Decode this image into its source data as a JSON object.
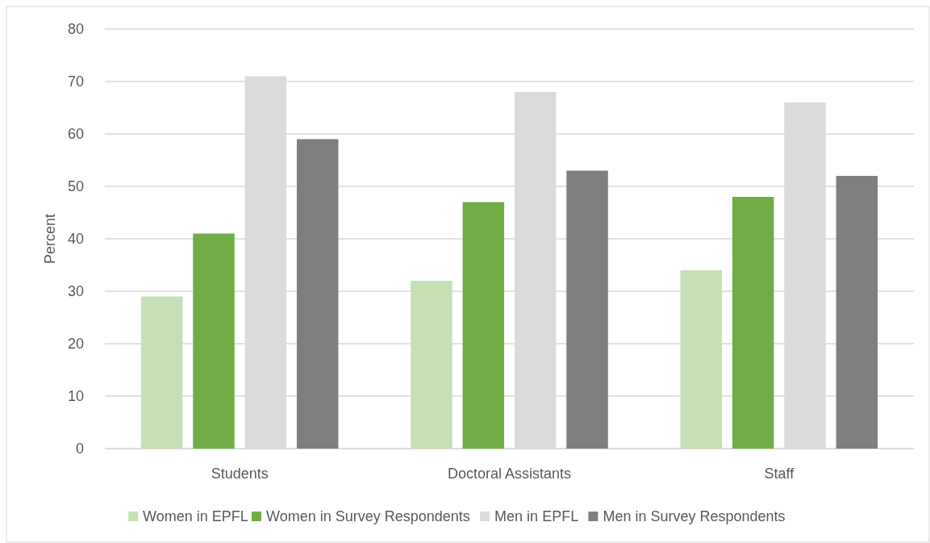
{
  "chart_data": {
    "type": "bar",
    "ylabel": "Percent",
    "categories": [
      "Students",
      "Doctoral Assistants",
      "Staff"
    ],
    "series": [
      {
        "name": "Women in EPFL",
        "color": "#c5e0b4",
        "values": [
          29,
          32,
          34
        ]
      },
      {
        "name": "Women in Survey Respondents",
        "color": "#70ad47",
        "values": [
          41,
          47,
          48
        ]
      },
      {
        "name": "Men in EPFL",
        "color": "#dbdbdb",
        "values": [
          71,
          68,
          66
        ]
      },
      {
        "name": "Men in Survey Respondents",
        "color": "#7f7f7f",
        "values": [
          59,
          53,
          52
        ]
      }
    ],
    "ylim": [
      0,
      80
    ],
    "yticks": [
      0,
      10,
      20,
      30,
      40,
      50,
      60,
      70,
      80
    ],
    "grid": "y",
    "legend": "bottom"
  }
}
